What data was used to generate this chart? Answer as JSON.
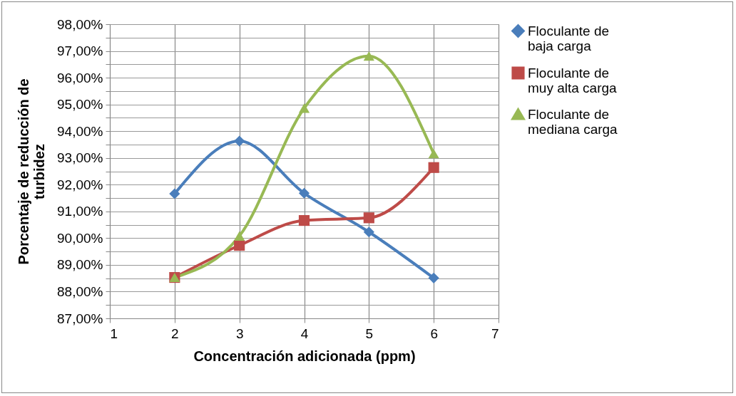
{
  "chart_data": {
    "type": "line",
    "xlabel": "Concentración adicionada (ppm)",
    "ylabel": "Porcentaje de reducción de turbidez",
    "x": [
      2,
      3,
      4,
      5,
      6
    ],
    "series": [
      {
        "name": "Floculante de baja carga",
        "color": "#4a7ebb",
        "marker": "diamond",
        "values": [
          91.66,
          93.63,
          91.68,
          90.23,
          88.51
        ]
      },
      {
        "name": "Floculante de muy alta carga",
        "color": "#be4b48",
        "marker": "square",
        "values": [
          88.53,
          89.73,
          90.66,
          90.76,
          92.64
        ]
      },
      {
        "name": "Floculante de mediana carga",
        "color": "#98b954",
        "marker": "triangle",
        "values": [
          88.53,
          90.08,
          94.86,
          96.81,
          93.16
        ]
      }
    ],
    "xlim": [
      1,
      7
    ],
    "xticks": [
      1,
      2,
      3,
      4,
      5,
      6,
      7
    ],
    "ylim": [
      87,
      98
    ],
    "yticks": [
      {
        "value": 87,
        "label": "87,00%"
      },
      {
        "value": 87.5,
        "label": null
      },
      {
        "value": 88,
        "label": "88,00%"
      },
      {
        "value": 88.5,
        "label": null
      },
      {
        "value": 89,
        "label": "89,00%"
      },
      {
        "value": 89.5,
        "label": null
      },
      {
        "value": 90,
        "label": "90,00%"
      },
      {
        "value": 90.5,
        "label": null
      },
      {
        "value": 91,
        "label": "91,00%"
      },
      {
        "value": 91.5,
        "label": null
      },
      {
        "value": 92,
        "label": "92,00%"
      },
      {
        "value": 92.5,
        "label": null
      },
      {
        "value": 93,
        "label": "93,00%"
      },
      {
        "value": 93.5,
        "label": null
      },
      {
        "value": 94,
        "label": "94,00%"
      },
      {
        "value": 94.5,
        "label": null
      },
      {
        "value": 95,
        "label": "95,00%"
      },
      {
        "value": 95.5,
        "label": null
      },
      {
        "value": 96,
        "label": "96,00%"
      },
      {
        "value": 96.5,
        "label": null
      },
      {
        "value": 97,
        "label": "97,00%"
      },
      {
        "value": 97.5,
        "label": null
      },
      {
        "value": 98,
        "label": "98,00%"
      }
    ],
    "grid": true,
    "legend": "right",
    "line_style": "solid"
  }
}
